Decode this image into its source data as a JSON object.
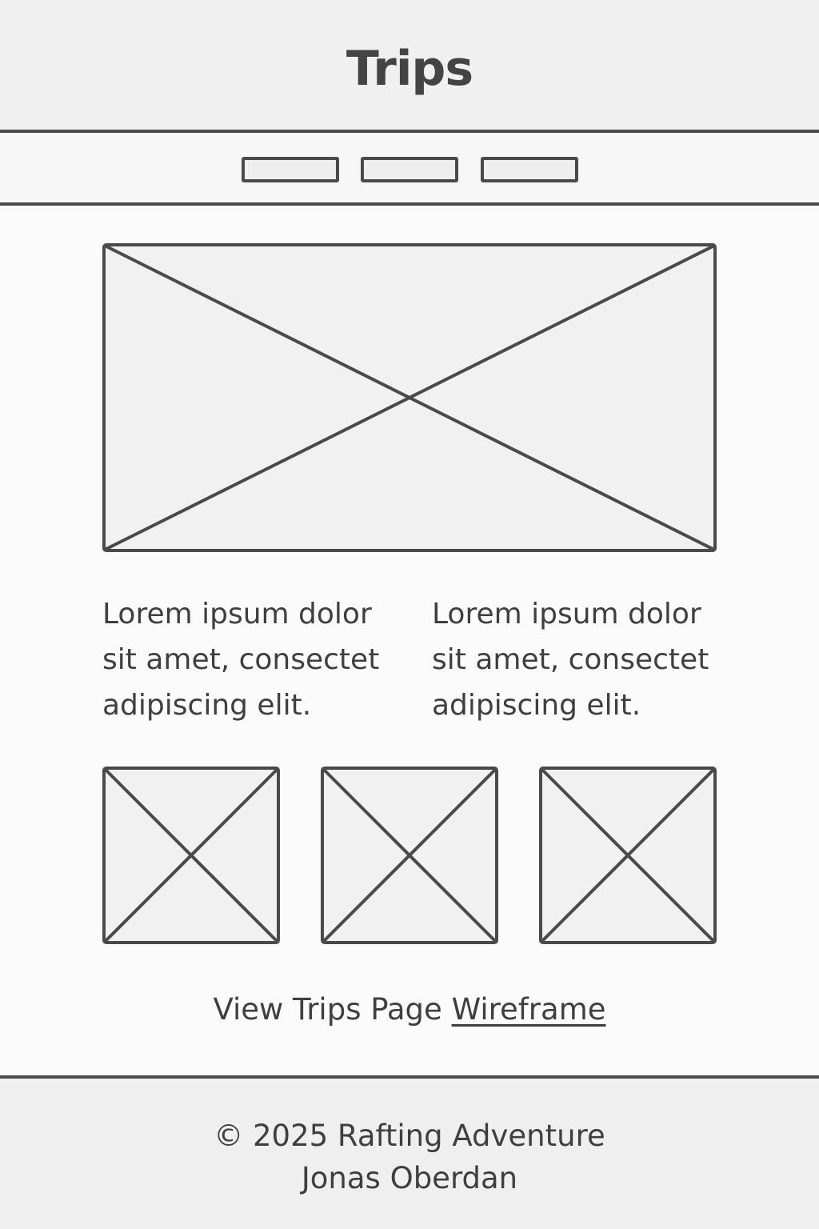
{
  "header": {
    "title": "Trips"
  },
  "nav": {
    "buttons": [
      {
        "label": ""
      },
      {
        "label": ""
      },
      {
        "label": ""
      }
    ]
  },
  "main": {
    "hero_image": "image-placeholder",
    "columns": [
      {
        "text": "Lorem ipsum dolor sit amet, consectet adipiscing elit."
      },
      {
        "text": "Lorem ipsum dolor sit amet, consectet adipiscing elit."
      }
    ],
    "thumbnails": [
      "image-placeholder",
      "image-placeholder",
      "image-placeholder"
    ],
    "view_link": {
      "prefix": "View Trips Page ",
      "link_text": "Wireframe"
    }
  },
  "footer": {
    "copyright": "© 2025 Rafting Adventure",
    "author": "Jonas Oberdan"
  },
  "colors": {
    "line": "#4a4a4a",
    "text": "#3f3f3f",
    "header_bg": "#f0f0f0",
    "page_bg": "#fbfbfb"
  }
}
